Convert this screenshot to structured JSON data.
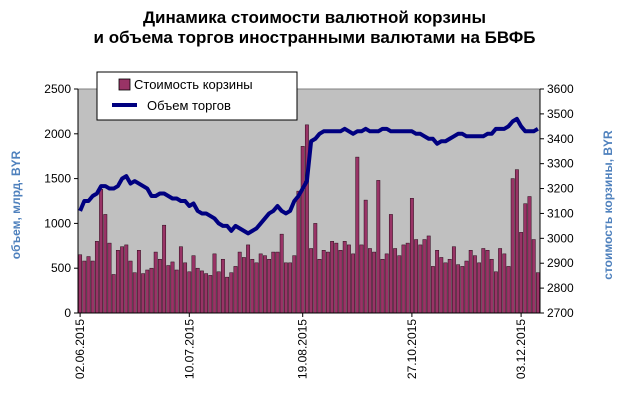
{
  "title": {
    "line1": "Динамика стоимости валютной корзины",
    "line2": "и объема торгов иностранными валютами на БВФБ"
  },
  "colors": {
    "plot_bg": "#c0c0c0",
    "bar_fill": "#993366",
    "bar_stroke": "#2a0a1a",
    "line": "#000080",
    "axis_label": "#4f81bd"
  },
  "chart_data": {
    "type": "bar+line",
    "title": "Динамика стоимости валютной корзины и объема торгов иностранными валютами на БВФБ",
    "ylabel_left": "объем, млрд. BYR",
    "ylabel_right": "стоимость корзины, BYR",
    "ylim_left": [
      0,
      2500
    ],
    "yticks_left": [
      0,
      500,
      1000,
      1500,
      2000,
      2500
    ],
    "ylim_right": [
      2700,
      3600
    ],
    "yticks_right": [
      2700,
      2800,
      2900,
      3000,
      3100,
      3200,
      3300,
      3400,
      3500,
      3600
    ],
    "x_tick_labels": [
      "02.06.2015",
      "10.07.2015",
      "19.08.2015",
      "27.10.2015",
      "03.12.2015"
    ],
    "x_tick_index": [
      0,
      26,
      53,
      79,
      105
    ],
    "grid": false,
    "legend_position": "top-left",
    "series": [
      {
        "name": "Стоимость корзины",
        "type": "bar",
        "axis": "left",
        "values": [
          650,
          580,
          630,
          580,
          800,
          1380,
          1100,
          780,
          430,
          700,
          740,
          760,
          580,
          450,
          700,
          440,
          480,
          500,
          680,
          600,
          980,
          530,
          570,
          480,
          740,
          560,
          460,
          640,
          500,
          470,
          440,
          420,
          660,
          460,
          600,
          400,
          450,
          520,
          680,
          620,
          760,
          600,
          560,
          660,
          640,
          600,
          680,
          680,
          880,
          560,
          560,
          640,
          1360,
          1860,
          2100,
          720,
          1000,
          600,
          700,
          680,
          800,
          780,
          700,
          800,
          760,
          660,
          1740,
          760,
          1260,
          720,
          680,
          1480,
          600,
          660,
          1100,
          720,
          640,
          760,
          780,
          1280,
          820,
          760,
          820,
          860,
          520,
          700,
          620,
          560,
          600,
          740,
          540,
          520,
          580,
          700,
          640,
          560,
          720,
          700,
          600,
          460,
          720,
          660,
          520,
          1500,
          1600,
          900,
          1220,
          1300,
          820,
          450
        ]
      },
      {
        "name": "Объем торгов",
        "type": "line",
        "axis": "right",
        "values": [
          3110,
          3150,
          3150,
          3170,
          3180,
          3210,
          3210,
          3200,
          3200,
          3210,
          3240,
          3250,
          3220,
          3230,
          3220,
          3210,
          3200,
          3170,
          3170,
          3180,
          3180,
          3170,
          3160,
          3160,
          3150,
          3150,
          3130,
          3140,
          3110,
          3100,
          3100,
          3090,
          3080,
          3060,
          3050,
          3050,
          3030,
          3050,
          3040,
          3030,
          3020,
          3030,
          3040,
          3060,
          3080,
          3100,
          3110,
          3130,
          3110,
          3100,
          3110,
          3150,
          3170,
          3200,
          3230,
          3390,
          3400,
          3420,
          3430,
          3430,
          3430,
          3430,
          3430,
          3440,
          3430,
          3420,
          3430,
          3430,
          3440,
          3430,
          3430,
          3430,
          3440,
          3440,
          3430,
          3430,
          3430,
          3430,
          3430,
          3430,
          3420,
          3420,
          3410,
          3400,
          3400,
          3380,
          3390,
          3390,
          3400,
          3410,
          3420,
          3420,
          3410,
          3410,
          3410,
          3410,
          3410,
          3420,
          3420,
          3440,
          3440,
          3440,
          3450,
          3470,
          3480,
          3450,
          3430,
          3430,
          3430,
          3440
        ]
      }
    ]
  }
}
